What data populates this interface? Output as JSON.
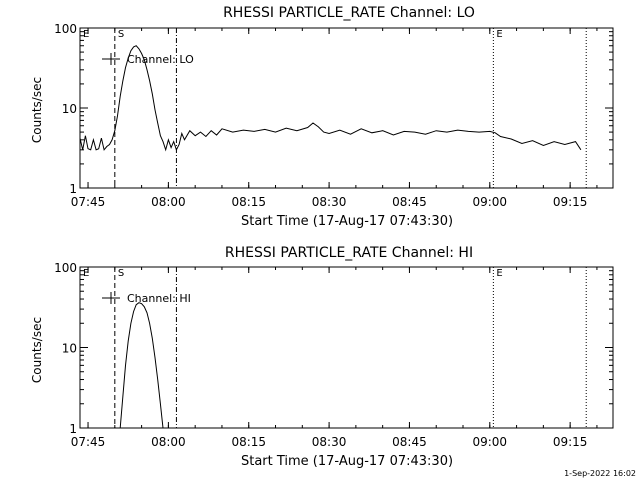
{
  "footer_stamp": "1-Sep-2022 16:02",
  "chart_data": [
    {
      "type": "line",
      "title": "RHESSI PARTICLE_RATE Channel: LO",
      "xlabel": "Start Time (17-Aug-17 07:43:30)",
      "ylabel": "Counts/sec",
      "yscale": "log",
      "ylim": [
        1,
        100
      ],
      "xlim": [
        "07:43:30",
        "09:23:00"
      ],
      "xticks": [
        "07:45",
        "08:00",
        "08:15",
        "08:30",
        "08:45",
        "09:00",
        "09:15"
      ],
      "yticks": [
        "1",
        "10",
        "100"
      ],
      "legend": "Channel: LO",
      "markers": [
        {
          "label": "E",
          "time": "07:43:30",
          "style": "solid"
        },
        {
          "label": "S",
          "time": "07:50:00",
          "style": "dashed"
        },
        {
          "label": "",
          "time": "08:01:30",
          "style": "dash-dot"
        },
        {
          "label": "E",
          "time": "09:00:40",
          "style": "dotted"
        },
        {
          "label": "",
          "time": "09:18:00",
          "style": "dotted"
        }
      ],
      "series": [
        {
          "name": "Channel: LO",
          "x": [
            "07:43:30",
            "07:44:00",
            "07:44:30",
            "07:45:00",
            "07:45:30",
            "07:46:00",
            "07:46:30",
            "07:47:00",
            "07:47:30",
            "07:48:00",
            "07:48:30",
            "07:49:00",
            "07:49:30",
            "07:50:00",
            "07:50:30",
            "07:51:00",
            "07:51:30",
            "07:52:00",
            "07:52:30",
            "07:53:00",
            "07:53:30",
            "07:54:00",
            "07:54:30",
            "07:55:00",
            "07:55:30",
            "07:56:00",
            "07:56:30",
            "07:57:00",
            "07:57:30",
            "07:58:00",
            "07:58:30",
            "07:59:00",
            "07:59:30",
            "08:00:00",
            "08:00:30",
            "08:01:00",
            "08:01:30",
            "08:02:00",
            "08:02:30",
            "08:03:00",
            "08:04:00",
            "08:05:00",
            "08:06:00",
            "08:07:00",
            "08:08:00",
            "08:09:00",
            "08:10:00",
            "08:12:00",
            "08:14:00",
            "08:16:00",
            "08:18:00",
            "08:20:00",
            "08:22:00",
            "08:24:00",
            "08:26:00",
            "08:27:00",
            "08:28:00",
            "08:29:00",
            "08:30:00",
            "08:32:00",
            "08:34:00",
            "08:36:00",
            "08:38:00",
            "08:40:00",
            "08:42:00",
            "08:44:00",
            "08:46:00",
            "08:48:00",
            "08:50:00",
            "08:52:00",
            "08:54:00",
            "08:56:00",
            "08:58:00",
            "09:00:00",
            "09:01:00",
            "09:02:00",
            "09:04:00",
            "09:06:00",
            "09:08:00",
            "09:10:00",
            "09:12:00",
            "09:14:00",
            "09:16:00",
            "09:17:00"
          ],
          "values": [
            4.2,
            3.0,
            4.5,
            3.1,
            3.0,
            4.0,
            3.0,
            3.1,
            4.2,
            3.0,
            3.3,
            3.5,
            4.0,
            5.2,
            8.0,
            14,
            22,
            32,
            42,
            52,
            58,
            60,
            55,
            48,
            40,
            30,
            22,
            15,
            9.5,
            6.5,
            4.5,
            3.8,
            3.0,
            4.0,
            3.2,
            3.8,
            3.0,
            3.5,
            4.8,
            4.0,
            5.2,
            4.5,
            5.0,
            4.4,
            5.2,
            4.6,
            5.5,
            5.0,
            5.3,
            5.1,
            5.4,
            5.0,
            5.6,
            5.2,
            5.7,
            6.5,
            5.8,
            5.0,
            4.8,
            5.3,
            4.7,
            5.5,
            4.9,
            5.2,
            4.6,
            5.1,
            5.0,
            4.7,
            5.2,
            5.0,
            5.3,
            5.1,
            5.0,
            5.1,
            4.9,
            4.4,
            4.1,
            3.6,
            3.9,
            3.4,
            3.8,
            3.5,
            3.8,
            3.0
          ]
        }
      ]
    },
    {
      "type": "line",
      "title": "RHESSI PARTICLE_RATE Channel: HI",
      "xlabel": "Start Time (17-Aug-17 07:43:30)",
      "ylabel": "Counts/sec",
      "yscale": "log",
      "ylim": [
        1,
        100
      ],
      "xlim": [
        "07:43:30",
        "09:23:00"
      ],
      "xticks": [
        "07:45",
        "08:00",
        "08:15",
        "08:30",
        "08:45",
        "09:00",
        "09:15"
      ],
      "yticks": [
        "1",
        "10",
        "100"
      ],
      "legend": "Channel: HI",
      "markers": [
        {
          "label": "E",
          "time": "07:43:30",
          "style": "solid"
        },
        {
          "label": "S",
          "time": "07:50:00",
          "style": "dashed"
        },
        {
          "label": "",
          "time": "08:01:30",
          "style": "dash-dot"
        },
        {
          "label": "E",
          "time": "09:00:40",
          "style": "dotted"
        },
        {
          "label": "",
          "time": "09:18:00",
          "style": "dotted"
        }
      ],
      "series": [
        {
          "name": "Channel: HI",
          "x": [
            "07:51:00",
            "07:51:30",
            "07:52:00",
            "07:52:30",
            "07:53:00",
            "07:53:30",
            "07:54:00",
            "07:54:30",
            "07:55:00",
            "07:55:30",
            "07:56:00",
            "07:56:30",
            "07:57:00",
            "07:57:30",
            "07:58:00",
            "07:58:30",
            "07:59:00"
          ],
          "values": [
            1.0,
            2.5,
            6.0,
            12,
            20,
            28,
            34,
            36,
            35,
            32,
            27,
            20,
            13,
            7.5,
            4.0,
            2.0,
            1.0
          ]
        }
      ]
    }
  ]
}
